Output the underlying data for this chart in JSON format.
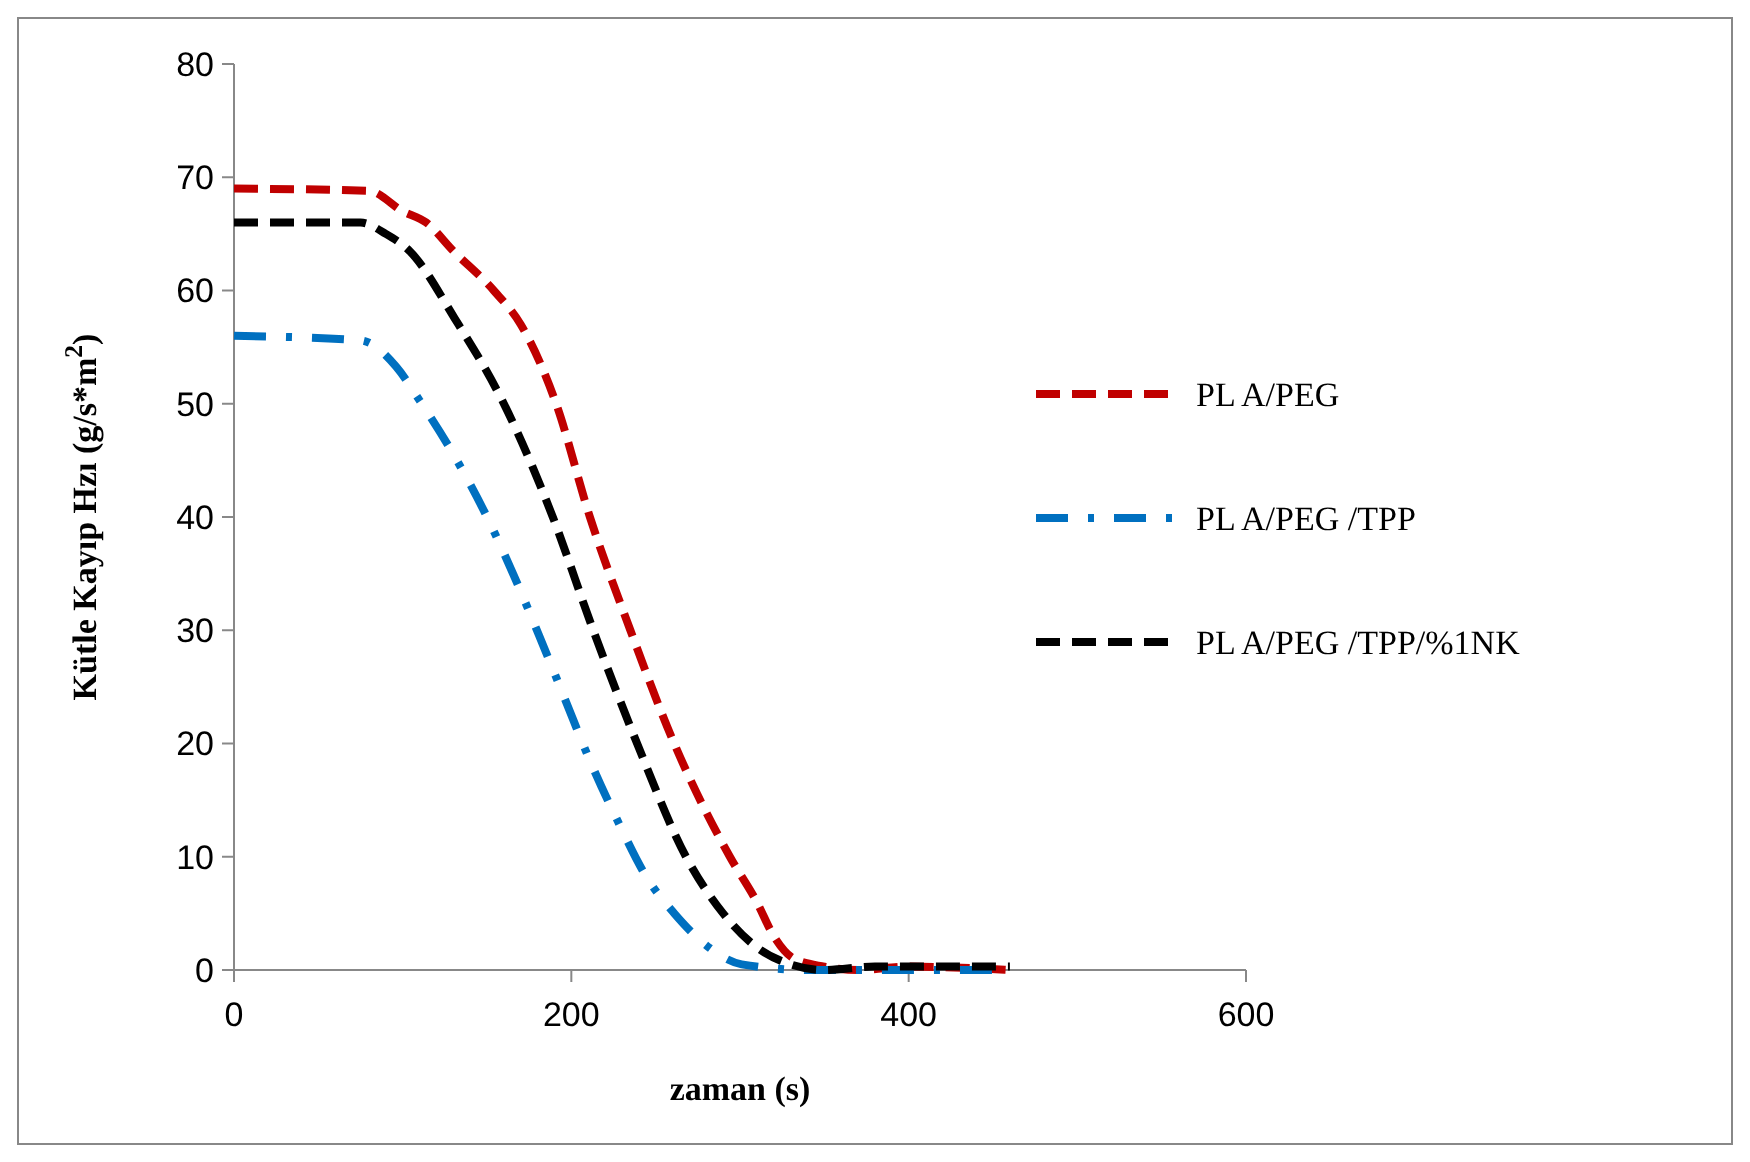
{
  "chart_data": {
    "type": "line",
    "xlabel": "zaman  (s)",
    "ylabel": "Kütle  Kayıp  Hzı (g/s*m$^{2}$)",
    "xlim": [
      0,
      600
    ],
    "xticks": [
      0,
      200,
      400,
      600
    ],
    "ylim": [
      0,
      80
    ],
    "yticks": [
      0,
      10,
      20,
      30,
      40,
      50,
      60,
      70,
      80
    ],
    "grid": false,
    "legend": "right",
    "series": [
      {
        "name": "PL A/PEG",
        "color": "#c00000",
        "line_style": "dashed",
        "x": [
          0,
          80,
          100,
          114,
          130,
          154,
          170,
          191,
          211,
          235,
          261,
          294,
          310,
          320,
          332,
          350,
          370,
          400,
          460
        ],
        "values": [
          69,
          68.8,
          67,
          66,
          63.5,
          60,
          57,
          50,
          40,
          30,
          20,
          10,
          6,
          3,
          1,
          0.3,
          0,
          0.3,
          0
        ]
      },
      {
        "name": "PL A/PEG /TPP",
        "color": "#0070c0",
        "line_style": "dashdot",
        "x": [
          0,
          75,
          96,
          110,
          131,
          150,
          166,
          181,
          196,
          211,
          228,
          245,
          261,
          279,
          301,
          340,
          400,
          460
        ],
        "values": [
          56,
          55.6,
          53.3,
          50.3,
          45.3,
          40,
          34.8,
          29.5,
          24,
          18.5,
          13,
          8.1,
          5,
          2.3,
          0.5,
          0,
          0,
          0
        ]
      },
      {
        "name": "PL A/PEG /TPP/%1NK",
        "color": "#000000",
        "line_style": "dashed",
        "x": [
          0,
          75,
          90,
          104,
          131,
          160,
          189,
          213,
          239,
          268,
          290,
          310,
          330,
          350,
          380,
          460
        ],
        "values": [
          66,
          66,
          65,
          63.5,
          57.5,
          50,
          40,
          30,
          20,
          10,
          5,
          2,
          0.5,
          0,
          0.3,
          0.3
        ]
      }
    ]
  }
}
